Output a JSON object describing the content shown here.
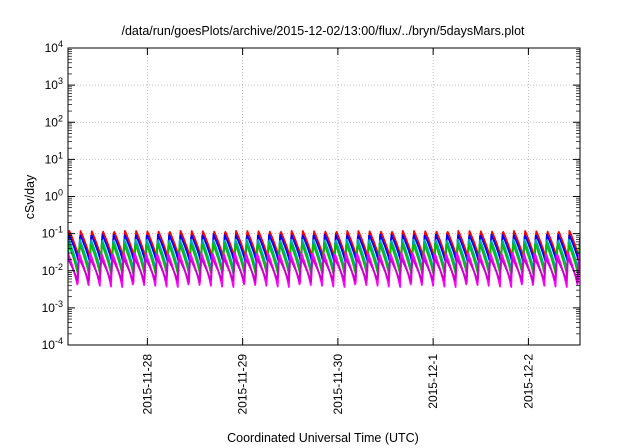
{
  "chart_data": {
    "type": "line",
    "title": "/data/run/goesPlots/archive/2015-12-02/13:00/flux/../bryn/5daysMars.plot",
    "xlabel": "Coordinated Universal Time (UTC)",
    "ylabel": "cSv/day",
    "y_scale": "log10",
    "ylim": [
      0.0001,
      10000
    ],
    "y_ticks": [
      {
        "base": "10",
        "exp": "4"
      },
      {
        "base": "10",
        "exp": "3"
      },
      {
        "base": "10",
        "exp": "2"
      },
      {
        "base": "10",
        "exp": "1"
      },
      {
        "base": "10",
        "exp": "0"
      },
      {
        "base": "10",
        "exp": "-1"
      },
      {
        "base": "10",
        "exp": "-2"
      },
      {
        "base": "10",
        "exp": "-3"
      },
      {
        "base": "10",
        "exp": "-4"
      }
    ],
    "xlim": [
      "2015-11-27T04:00",
      "2015-12-02T13:00"
    ],
    "x_ticks": [
      {
        "label": "2015-11-28",
        "value": "2015-11-28T00:00"
      },
      {
        "label": "2015-11-29",
        "value": "2015-11-29T00:00"
      },
      {
        "label": "2015-11-30",
        "value": "2015-11-30T00:00"
      },
      {
        "label": "2015-12-1",
        "value": "2015-12-01T00:00"
      },
      {
        "label": "2015-12-2",
        "value": "2015-12-02T00:00"
      }
    ],
    "grid": "dotted",
    "legend": "none",
    "cycle_hours": 2.8,
    "series": [
      {
        "color": "#ff0000",
        "peak": 0.12,
        "trough": 0.02
      },
      {
        "color": "#0000ff",
        "peak": 0.095,
        "trough": 0.016
      },
      {
        "color": "#00aaaa",
        "peak": 0.07,
        "trough": 0.009
      },
      {
        "color": "#00c000",
        "peak": 0.055,
        "trough": 0.007
      },
      {
        "color": "#ff00ff",
        "peak": 0.03,
        "trough": 0.0035
      },
      {
        "color": "#cc00cc",
        "peak": 0.022,
        "trough": 0.005
      }
    ]
  }
}
